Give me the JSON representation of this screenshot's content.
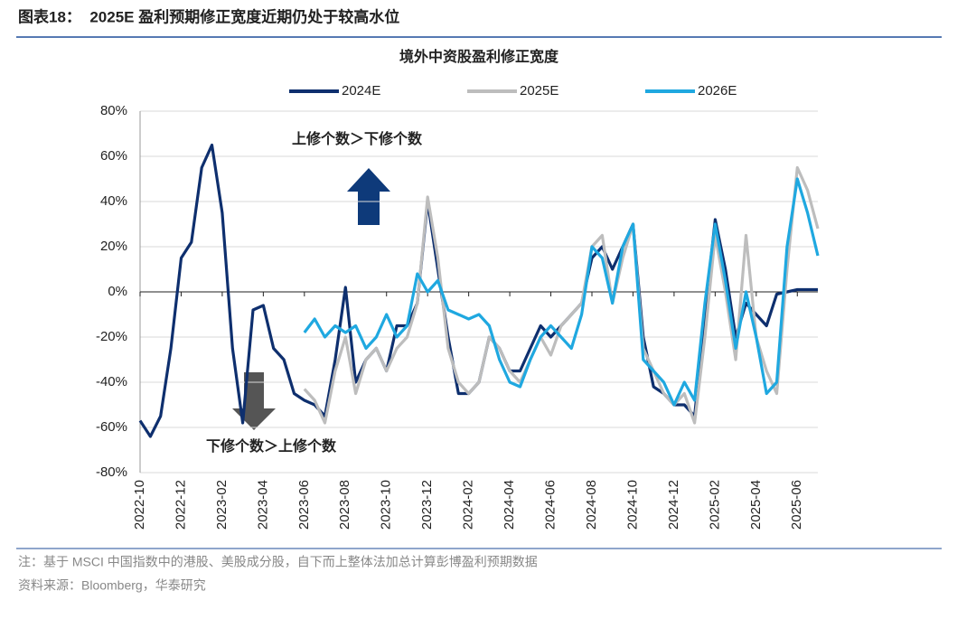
{
  "header": {
    "title": "图表18：  2025E 盈利预期修正宽度近期仍处于较高水位"
  },
  "chart_data": {
    "type": "line",
    "title": "境外中资股盈利修正宽度",
    "categories": [
      "2022-10",
      null,
      null,
      null,
      "2022-12",
      null,
      null,
      null,
      "2023-02",
      null,
      null,
      null,
      "2023-04",
      null,
      null,
      null,
      "2023-06",
      null,
      null,
      null,
      "2023-08",
      null,
      null,
      null,
      "2023-10",
      null,
      null,
      null,
      "2023-12",
      null,
      null,
      null,
      "2024-02",
      null,
      null,
      null,
      "2024-04",
      null,
      null,
      null,
      "2024-06",
      null,
      null,
      null,
      "2024-08",
      null,
      null,
      null,
      "2024-10",
      null,
      null,
      null,
      "2024-12",
      null,
      null,
      null,
      "2025-02",
      null,
      null,
      null,
      "2025-04",
      null,
      null,
      null,
      "2025-06",
      null,
      null
    ],
    "series": [
      {
        "name": "2024E",
        "color": "#0e2f6e",
        "values": [
          -57,
          -64,
          -55,
          -25,
          15,
          22,
          55,
          65,
          35,
          -25,
          -58,
          -8,
          -6,
          -25,
          -30,
          -45,
          -48,
          -50,
          -55,
          -30,
          2,
          -40,
          -30,
          -25,
          -35,
          -15,
          -15,
          -5,
          40,
          10,
          -20,
          -45,
          -45,
          -40,
          -20,
          -25,
          -35,
          -35,
          -25,
          -15,
          -20,
          -15,
          -10,
          -5,
          15,
          20,
          10,
          20,
          30,
          -20,
          -42,
          -45,
          -50,
          -50,
          -55,
          -10,
          32,
          10,
          -20,
          -5,
          -10,
          -15,
          -1,
          0,
          1,
          1,
          1
        ]
      },
      {
        "name": "2025E",
        "color": "#bdbdbd",
        "values": [
          null,
          null,
          null,
          null,
          null,
          null,
          null,
          null,
          null,
          null,
          null,
          null,
          null,
          null,
          null,
          null,
          -43,
          -48,
          -58,
          -35,
          -20,
          -45,
          -30,
          -25,
          -35,
          -25,
          -20,
          -5,
          42,
          15,
          -25,
          -40,
          -45,
          -40,
          -20,
          -25,
          -35,
          -40,
          -30,
          -20,
          -28,
          -15,
          -10,
          -5,
          20,
          25,
          -5,
          15,
          30,
          -25,
          -35,
          -45,
          -50,
          -45,
          -58,
          -20,
          25,
          0,
          -30,
          25,
          -20,
          -35,
          -45,
          10,
          55,
          45,
          28
        ]
      },
      {
        "name": "2026E",
        "color": "#1fa8e0",
        "values": [
          null,
          null,
          null,
          null,
          null,
          null,
          null,
          null,
          null,
          null,
          null,
          null,
          null,
          null,
          null,
          null,
          -18,
          -12,
          -20,
          -15,
          -18,
          -15,
          -25,
          -20,
          -10,
          -20,
          -15,
          8,
          0,
          5,
          -8,
          -10,
          -12,
          -10,
          -15,
          -30,
          -40,
          -42,
          -30,
          -20,
          -15,
          -20,
          -25,
          -10,
          20,
          15,
          -5,
          20,
          30,
          -30,
          -35,
          -40,
          -50,
          -40,
          -48,
          -5,
          30,
          5,
          -25,
          0,
          -20,
          -45,
          -40,
          20,
          50,
          35,
          16
        ]
      }
    ],
    "ylim": [
      -80,
      80
    ],
    "yticks": [
      {
        "value": -80,
        "label": "-80%"
      },
      {
        "value": -60,
        "label": "-60%"
      },
      {
        "value": -40,
        "label": "-40%"
      },
      {
        "value": -20,
        "label": "-20%"
      },
      {
        "value": 0,
        "label": "0%"
      },
      {
        "value": 20,
        "label": "20%"
      },
      {
        "value": 40,
        "label": "40%"
      },
      {
        "value": 60,
        "label": "60%"
      },
      {
        "value": 80,
        "label": "80%"
      }
    ],
    "grid": true,
    "annotations": [
      "上修个数＞下修个数",
      "下修个数＞上修个数"
    ]
  },
  "notes": [
    "注：基于 MSCI 中国指数中的港股、美股成分股，自下而上整体法加总计算彭博盈利预期数据",
    "资料来源：Bloomberg，华泰研究"
  ]
}
